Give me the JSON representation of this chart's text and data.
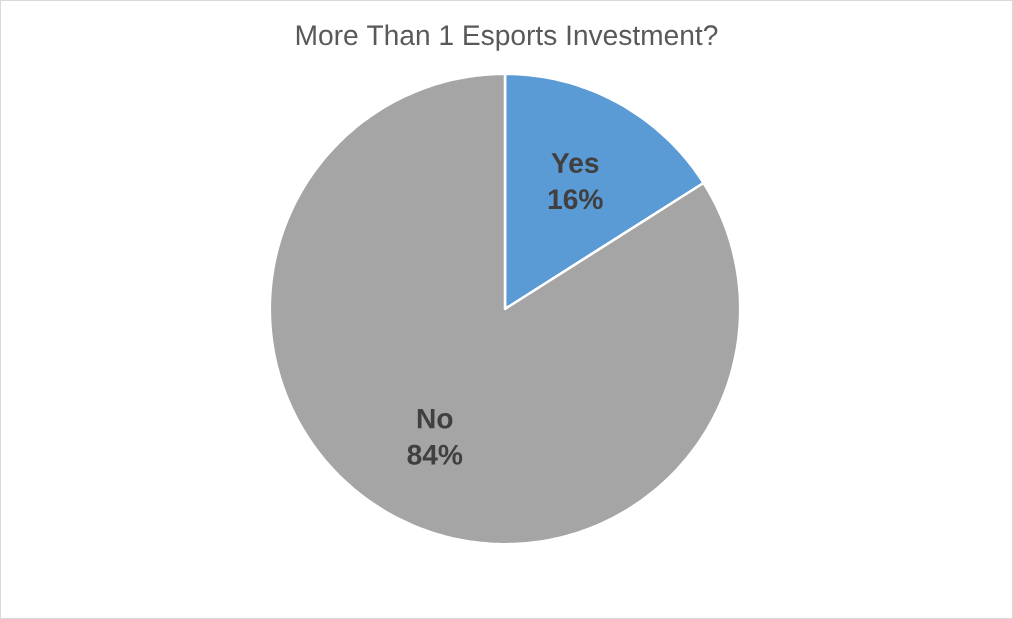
{
  "chart_data": {
    "type": "pie",
    "title": "More Than 1 Esports Investment?",
    "categories": [
      "Yes",
      "No"
    ],
    "values": [
      16,
      84
    ],
    "colors": [
      "#5b9bd5",
      "#a5a5a5"
    ],
    "value_labels": [
      "16%",
      "84%"
    ]
  }
}
